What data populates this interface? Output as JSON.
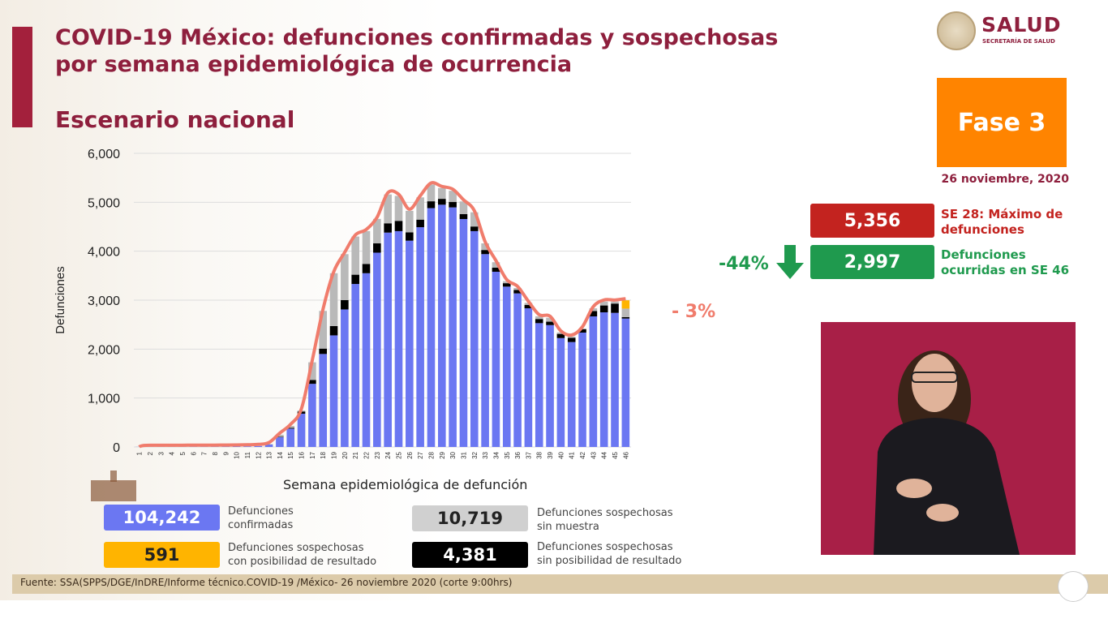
{
  "header": {
    "title_line1": "COVID-19 México: defunciones confirmadas y sospechosas",
    "title_line2": "por semana epidemiológica de ocurrencia",
    "subtitle": "Escenario nacional"
  },
  "logo": {
    "name": "SALUD",
    "subname": "SECRETARÍA DE SALUD"
  },
  "phase": {
    "label": "Fase 3",
    "color": "#ff8400"
  },
  "date": "26 noviembre, 2020",
  "kpis": {
    "max": {
      "value": "5,356",
      "label_line1": "SE 28: Máximo de",
      "label_line2": "defunciones",
      "color": "#c3231f"
    },
    "current": {
      "value": "2,997",
      "label_line1": "Defunciones",
      "label_line2": "ocurridas en SE 46",
      "color": "#1f9a4e"
    },
    "change_from_max": "-44%",
    "change_icon": "arrow-down-icon",
    "weekly_change": "- 3%"
  },
  "legend": [
    {
      "value": "104,242",
      "label_line1": "Defunciones",
      "label_line2": "confirmadas",
      "color": "#6b77f2"
    },
    {
      "value": "10,719",
      "label_line1": "Defunciones sospechosas",
      "label_line2": "sin muestra",
      "color": "#d0d0d0"
    },
    {
      "value": "591",
      "label_line1": "Defunciones sospechosas",
      "label_line2": "con posibilidad de resultado",
      "color": "#ffb400"
    },
    {
      "value": "4,381",
      "label_line1": "Defunciones sospechosas",
      "label_line2": "sin posibilidad de resultado",
      "color": "#000000"
    }
  ],
  "footer": "Fuente: SSA(SPPS/DGE/InDRE/Informe técnico.COVID-19 /México- 26 noviembre 2020 (corte 9:00hrs)",
  "chart_data": {
    "type": "bar",
    "stacked": true,
    "xlabel": "Semana epidemiológica de defunción",
    "ylabel": "Defunciones",
    "ylim": [
      0,
      6000
    ],
    "yticks": [
      "0",
      "1,000",
      "2,000",
      "3,000",
      "4,000",
      "5,000",
      "6,000"
    ],
    "grid": true,
    "categories": [
      "1",
      "2",
      "3",
      "4",
      "5",
      "6",
      "7",
      "8",
      "9",
      "10",
      "11",
      "12",
      "13",
      "14",
      "15",
      "16",
      "17",
      "18",
      "19",
      "20",
      "21",
      "22",
      "23",
      "24",
      "25",
      "26",
      "27",
      "28",
      "29",
      "30",
      "31",
      "32",
      "33",
      "34",
      "35",
      "36",
      "37",
      "38",
      "39",
      "40",
      "41",
      "42",
      "43",
      "44",
      "45",
      "46"
    ],
    "series": [
      {
        "key": "confirmadas",
        "color": "#6b77f2",
        "values": [
          2,
          2,
          3,
          3,
          3,
          4,
          4,
          5,
          6,
          8,
          12,
          20,
          50,
          200,
          375,
          680,
          1290,
          1900,
          2280,
          2810,
          3330,
          3550,
          3970,
          4380,
          4410,
          4215,
          4490,
          4880,
          4950,
          4895,
          4657,
          4410,
          3940,
          3580,
          3276,
          3138,
          2834,
          2530,
          2490,
          2225,
          2144,
          2337,
          2668,
          2751,
          2740,
          2624
        ]
      },
      {
        "key": "sin_posibilidad",
        "color": "#000000",
        "values": [
          0,
          0,
          0,
          0,
          0,
          0,
          0,
          0,
          0,
          0,
          0,
          0,
          2,
          10,
          15,
          45,
          80,
          110,
          190,
          190,
          190,
          190,
          190,
          190,
          210,
          170,
          155,
          140,
          120,
          110,
          100,
          95,
          85,
          85,
          70,
          70,
          70,
          85,
          70,
          85,
          85,
          70,
          110,
          140,
          190,
          30
        ]
      },
      {
        "key": "sin_muestra",
        "color": "#b9b9b9",
        "values": [
          0,
          0,
          0,
          0,
          0,
          0,
          0,
          0,
          0,
          0,
          0,
          0,
          5,
          40,
          40,
          20,
          360,
          770,
          1080,
          940,
          780,
          670,
          500,
          590,
          510,
          440,
          455,
          340,
          220,
          230,
          260,
          290,
          135,
          110,
          40,
          40,
          40,
          55,
          80,
          30,
          25,
          15,
          55,
          80,
          40,
          173
        ]
      },
      {
        "key": "con_posibilidad",
        "color": "#ffb400",
        "values": [
          0,
          0,
          0,
          0,
          0,
          0,
          0,
          0,
          0,
          0,
          0,
          0,
          0,
          0,
          0,
          0,
          0,
          0,
          0,
          0,
          0,
          0,
          0,
          0,
          0,
          0,
          0,
          0,
          0,
          0,
          0,
          0,
          0,
          0,
          0,
          0,
          0,
          0,
          0,
          0,
          0,
          0,
          0,
          0,
          0,
          170
        ]
      }
    ],
    "trend_line": {
      "color": "#f07c6c",
      "description_source": "total"
    }
  }
}
